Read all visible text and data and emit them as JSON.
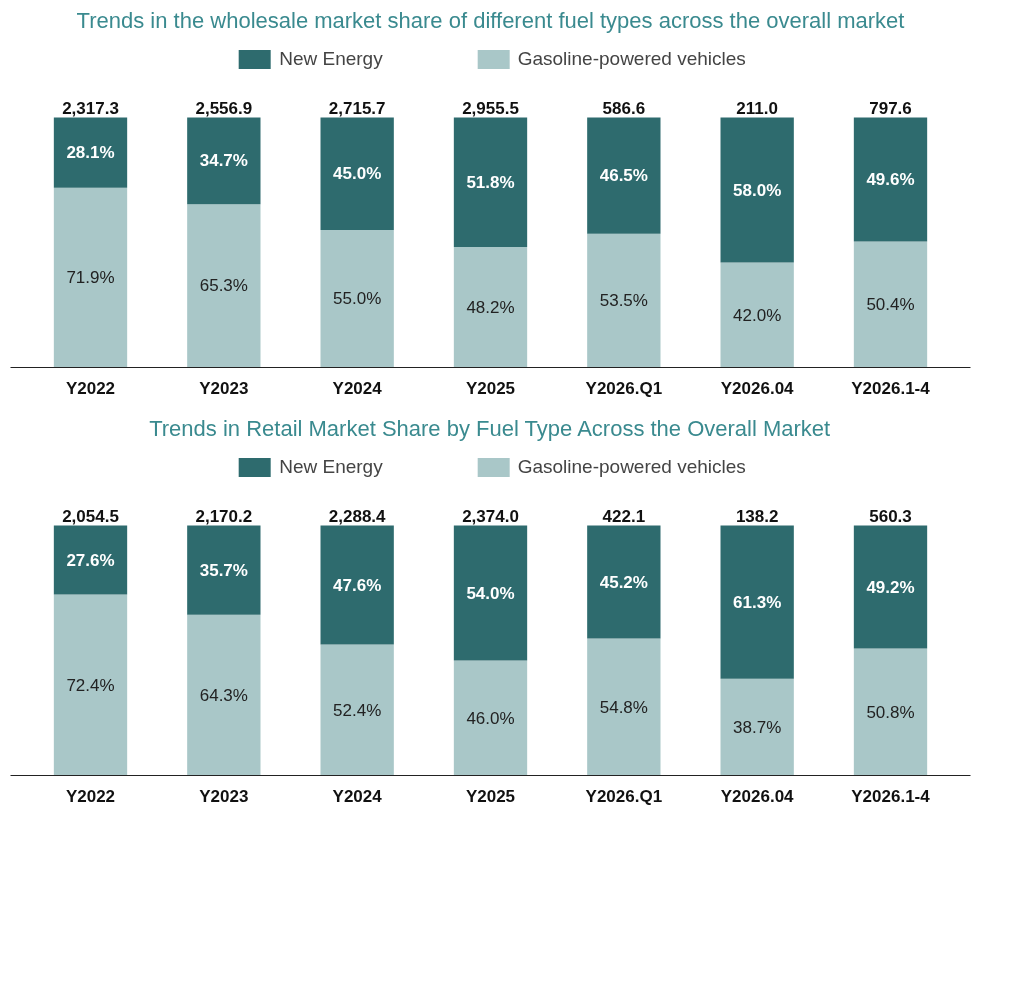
{
  "chart_data": [
    {
      "type": "bar",
      "stacked": true,
      "title": "Trends in the wholesale market share of different fuel types across the overall market",
      "categories": [
        "Y2022",
        "Y2023",
        "Y2024",
        "Y2025",
        "Y2026.Q1",
        "Y2026.04",
        "Y2026.1-4"
      ],
      "legend": "top",
      "tick_labels": "x",
      "series": [
        {
          "name": "Gasoline-powered vehicles",
          "color": "#a9c7c8",
          "values": [
            71.9,
            65.3,
            55.0,
            48.2,
            53.5,
            42.0,
            50.4
          ],
          "value_labels": [
            "71.9%",
            "65.3%",
            "55.0%",
            "48.2%",
            "53.5%",
            "42.0%",
            "50.4%"
          ]
        },
        {
          "name": "New Energy",
          "color": "#2e6b6e",
          "values": [
            28.1,
            34.7,
            45.0,
            51.8,
            46.5,
            58.0,
            49.6
          ],
          "value_labels": [
            "28.1%",
            "34.7%",
            "45.0%",
            "51.8%",
            "46.5%",
            "58.0%",
            "49.6%"
          ]
        }
      ],
      "annotations": [
        {
          "text": "2,317.3",
          "x": "Y2022",
          "y": 100
        },
        {
          "text": "2,556.9",
          "x": "Y2023",
          "y": 100
        },
        {
          "text": "2,715.7",
          "x": "Y2024",
          "y": 100
        },
        {
          "text": "2,955.5",
          "x": "Y2025",
          "y": 100
        },
        {
          "text": "586.6",
          "x": "Y2026.Q1",
          "y": 100
        },
        {
          "text": "211.0",
          "x": "Y2026.04",
          "y": 100
        },
        {
          "text": "797.6",
          "x": "Y2026.1-4",
          "y": 100
        }
      ]
    },
    {
      "type": "bar",
      "stacked": true,
      "title": "Trends in Retail Market Share by Fuel Type Across the Overall Market",
      "categories": [
        "Y2022",
        "Y2023",
        "Y2024",
        "Y2025",
        "Y2026.Q1",
        "Y2026.04",
        "Y2026.1-4"
      ],
      "legend": "top",
      "tick_labels": "x",
      "series": [
        {
          "name": "Gasoline-powered vehicles",
          "color": "#a9c7c8",
          "values": [
            72.4,
            64.3,
            52.4,
            46.0,
            54.8,
            38.7,
            50.8
          ],
          "value_labels": [
            "72.4%",
            "64.3%",
            "52.4%",
            "46.0%",
            "54.8%",
            "38.7%",
            "50.8%"
          ]
        },
        {
          "name": "New Energy",
          "color": "#2e6b6e",
          "values": [
            27.6,
            35.7,
            47.6,
            54.0,
            45.2,
            61.3,
            49.2
          ],
          "value_labels": [
            "27.6%",
            "35.7%",
            "47.6%",
            "54.0%",
            "45.2%",
            "61.3%",
            "49.2%"
          ]
        }
      ],
      "annotations": [
        {
          "text": "2,054.5",
          "x": "Y2022",
          "y": 100
        },
        {
          "text": "2,170.2",
          "x": "Y2023",
          "y": 100
        },
        {
          "text": "2,288.4",
          "x": "Y2024",
          "y": 100
        },
        {
          "text": "2,374.0",
          "x": "Y2025",
          "y": 100
        },
        {
          "text": "422.1",
          "x": "Y2026.Q1",
          "y": 100
        },
        {
          "text": "138.2",
          "x": "Y2026.04",
          "y": 100
        },
        {
          "text": "560.3",
          "x": "Y2026.1-4",
          "y": 100
        }
      ]
    }
  ]
}
